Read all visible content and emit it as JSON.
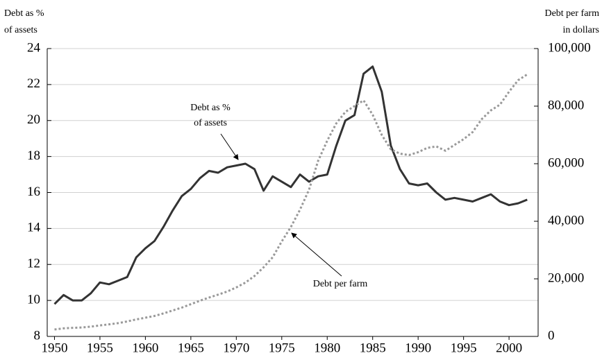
{
  "chart_data": {
    "type": "line",
    "y_label": [
      "Debt as %",
      "of assets"
    ],
    "y2_label": [
      "Debt per farm",
      " in dollars"
    ],
    "x": [
      1950,
      1951,
      1952,
      1953,
      1954,
      1955,
      1956,
      1957,
      1958,
      1959,
      1960,
      1961,
      1962,
      1963,
      1964,
      1965,
      1966,
      1967,
      1968,
      1969,
      1970,
      1971,
      1972,
      1973,
      1974,
      1975,
      1976,
      1977,
      1978,
      1979,
      1980,
      1981,
      1982,
      1983,
      1984,
      1985,
      1986,
      1987,
      1988,
      1989,
      1990,
      1991,
      1992,
      1993,
      1994,
      1995,
      1996,
      1997,
      1998,
      1999,
      2000,
      2001,
      2002
    ],
    "series": [
      {
        "name": "Debt as % of assets",
        "color": "#333333",
        "line_style": "solid",
        "values": [
          9.8,
          10.3,
          10.0,
          10.0,
          10.4,
          11.0,
          10.9,
          11.1,
          11.3,
          12.4,
          12.9,
          13.3,
          14.1,
          15.0,
          15.8,
          16.2,
          16.8,
          17.2,
          17.1,
          17.4,
          17.5,
          17.6,
          17.3,
          16.1,
          16.9,
          16.6,
          16.3,
          17.0,
          16.6,
          16.9,
          17.0,
          18.6,
          20.0,
          20.3,
          22.6,
          23.0,
          21.6,
          18.6,
          17.3,
          16.5,
          16.4,
          16.5,
          16.0,
          15.6,
          15.7,
          15.6,
          15.5,
          15.7,
          15.9,
          15.5,
          15.3,
          15.4,
          15.6
        ]
      },
      {
        "name": "Debt per farm",
        "color": "#999999",
        "line_style": "dotted",
        "axis": "y2",
        "values": [
          2400,
          2800,
          3000,
          3100,
          3400,
          3800,
          4200,
          4600,
          5200,
          5900,
          6500,
          7100,
          8000,
          9000,
          10000,
          11200,
          12400,
          13500,
          14500,
          15600,
          17000,
          18700,
          21000,
          24000,
          27500,
          33000,
          38000,
          44000,
          51000,
          61000,
          68000,
          74000,
          78000,
          80000,
          82000,
          77000,
          70000,
          65000,
          63500,
          63000,
          64000,
          65500,
          66000,
          64500,
          66500,
          68500,
          71000,
          75500,
          78500,
          80500,
          85000,
          89000,
          91000
        ]
      }
    ],
    "annotations": [
      {
        "lines": [
          "Debt as %",
          "of assets"
        ],
        "series": 0
      },
      {
        "lines": [
          "Debt per farm"
        ],
        "series": 1
      }
    ],
    "xlim": [
      1949.2,
      2003.2
    ],
    "xticks": [
      1950,
      1955,
      1960,
      1965,
      1970,
      1975,
      1980,
      1985,
      1990,
      1995,
      2000
    ],
    "ylim": [
      8,
      24
    ],
    "yticks": [
      8,
      10,
      12,
      14,
      16,
      18,
      20,
      22,
      24
    ],
    "y2lim": [
      0,
      100000
    ],
    "y2ticks": [
      0,
      {
        "value": 20000,
        "label": "20,000"
      },
      {
        "value": 40000,
        "label": "40,000"
      },
      {
        "value": 60000,
        "label": "60,000"
      },
      {
        "value": 80000,
        "label": "80,000"
      },
      {
        "value": 100000,
        "label": "100,000"
      }
    ],
    "grid": true
  }
}
